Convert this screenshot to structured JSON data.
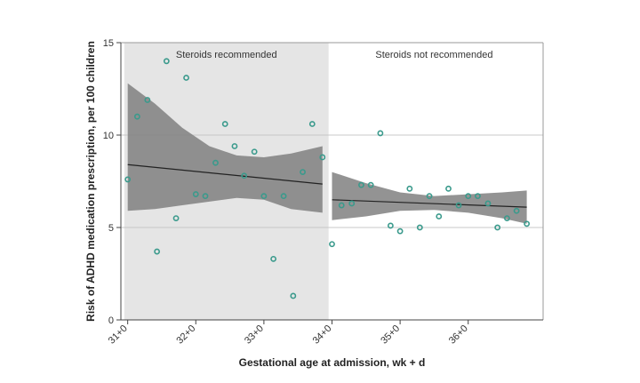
{
  "chart_data": {
    "type": "scatter",
    "title": "",
    "xlabel": "Gestational age at admission, wk + d",
    "ylabel": "Risk of ADHD medication prescription, per 100 children",
    "xlim": [
      30.9,
      37.1
    ],
    "ylim": [
      0,
      15
    ],
    "x_ticks": [
      {
        "value": 31,
        "label": "31+0"
      },
      {
        "value": 32,
        "label": "32+0"
      },
      {
        "value": 33,
        "label": "33+0"
      },
      {
        "value": 34,
        "label": "34+0"
      },
      {
        "value": 35,
        "label": "35+0"
      },
      {
        "value": 36,
        "label": "36+0"
      }
    ],
    "y_ticks": [
      0,
      5,
      10,
      15
    ],
    "grid": true,
    "colors": {
      "points": "#3a9a8c",
      "band": "#808080",
      "shade": "#e5e5e5",
      "fit": "#222222"
    },
    "regions": [
      {
        "name": "Steroids recommended",
        "x_range": [
          30.95,
          33.95
        ],
        "shaded": true
      },
      {
        "name": "Steroids not recommended",
        "x_range": [
          33.95,
          37.05
        ],
        "shaded": false
      }
    ],
    "series": [
      {
        "points": [
          {
            "x": 31.0,
            "y": 7.6
          },
          {
            "x": 31.14,
            "y": 11.0
          },
          {
            "x": 31.29,
            "y": 11.9
          },
          {
            "x": 31.43,
            "y": 3.7
          },
          {
            "x": 31.57,
            "y": 14.0
          },
          {
            "x": 31.71,
            "y": 5.5
          },
          {
            "x": 31.86,
            "y": 13.1
          },
          {
            "x": 32.0,
            "y": 6.8
          },
          {
            "x": 32.14,
            "y": 6.7
          },
          {
            "x": 32.29,
            "y": 8.5
          },
          {
            "x": 32.43,
            "y": 10.6
          },
          {
            "x": 32.57,
            "y": 9.4
          },
          {
            "x": 32.71,
            "y": 7.8
          },
          {
            "x": 32.86,
            "y": 9.1
          },
          {
            "x": 33.0,
            "y": 6.7
          },
          {
            "x": 33.14,
            "y": 3.3
          },
          {
            "x": 33.29,
            "y": 6.7
          },
          {
            "x": 33.43,
            "y": 1.3
          },
          {
            "x": 33.57,
            "y": 8.0
          },
          {
            "x": 33.71,
            "y": 10.6
          },
          {
            "x": 33.86,
            "y": 8.8
          }
        ],
        "fit": {
          "x": [
            31.0,
            33.86
          ],
          "y": [
            8.4,
            7.35
          ]
        },
        "ci": {
          "x": [
            31.0,
            31.4,
            31.8,
            32.2,
            32.6,
            33.0,
            33.4,
            33.86
          ],
          "upper": [
            12.8,
            11.7,
            10.4,
            9.4,
            8.9,
            8.8,
            9.0,
            9.4
          ],
          "lower": [
            5.9,
            6.0,
            6.2,
            6.4,
            6.6,
            6.5,
            6.0,
            5.8
          ]
        }
      },
      {
        "points": [
          {
            "x": 34.0,
            "y": 4.1
          },
          {
            "x": 34.14,
            "y": 6.2
          },
          {
            "x": 34.29,
            "y": 6.3
          },
          {
            "x": 34.43,
            "y": 7.3
          },
          {
            "x": 34.57,
            "y": 7.3
          },
          {
            "x": 34.71,
            "y": 10.1
          },
          {
            "x": 34.86,
            "y": 5.1
          },
          {
            "x": 35.0,
            "y": 4.8
          },
          {
            "x": 35.14,
            "y": 7.1
          },
          {
            "x": 35.29,
            "y": 5.0
          },
          {
            "x": 35.43,
            "y": 6.7
          },
          {
            "x": 35.57,
            "y": 5.6
          },
          {
            "x": 35.71,
            "y": 7.1
          },
          {
            "x": 35.86,
            "y": 6.2
          },
          {
            "x": 36.0,
            "y": 6.7
          },
          {
            "x": 36.14,
            "y": 6.7
          },
          {
            "x": 36.29,
            "y": 6.3
          },
          {
            "x": 36.43,
            "y": 5.0
          },
          {
            "x": 36.57,
            "y": 5.5
          },
          {
            "x": 36.71,
            "y": 5.9
          },
          {
            "x": 36.86,
            "y": 5.2
          }
        ],
        "fit": {
          "x": [
            34.0,
            36.86
          ],
          "y": [
            6.5,
            6.1
          ]
        },
        "ci": {
          "x": [
            34.0,
            34.5,
            35.0,
            35.5,
            36.0,
            36.5,
            36.86
          ],
          "upper": [
            8.0,
            7.4,
            6.9,
            6.7,
            6.8,
            6.9,
            7.0
          ],
          "lower": [
            5.4,
            5.6,
            5.9,
            5.95,
            5.8,
            5.5,
            5.2
          ]
        }
      }
    ]
  }
}
